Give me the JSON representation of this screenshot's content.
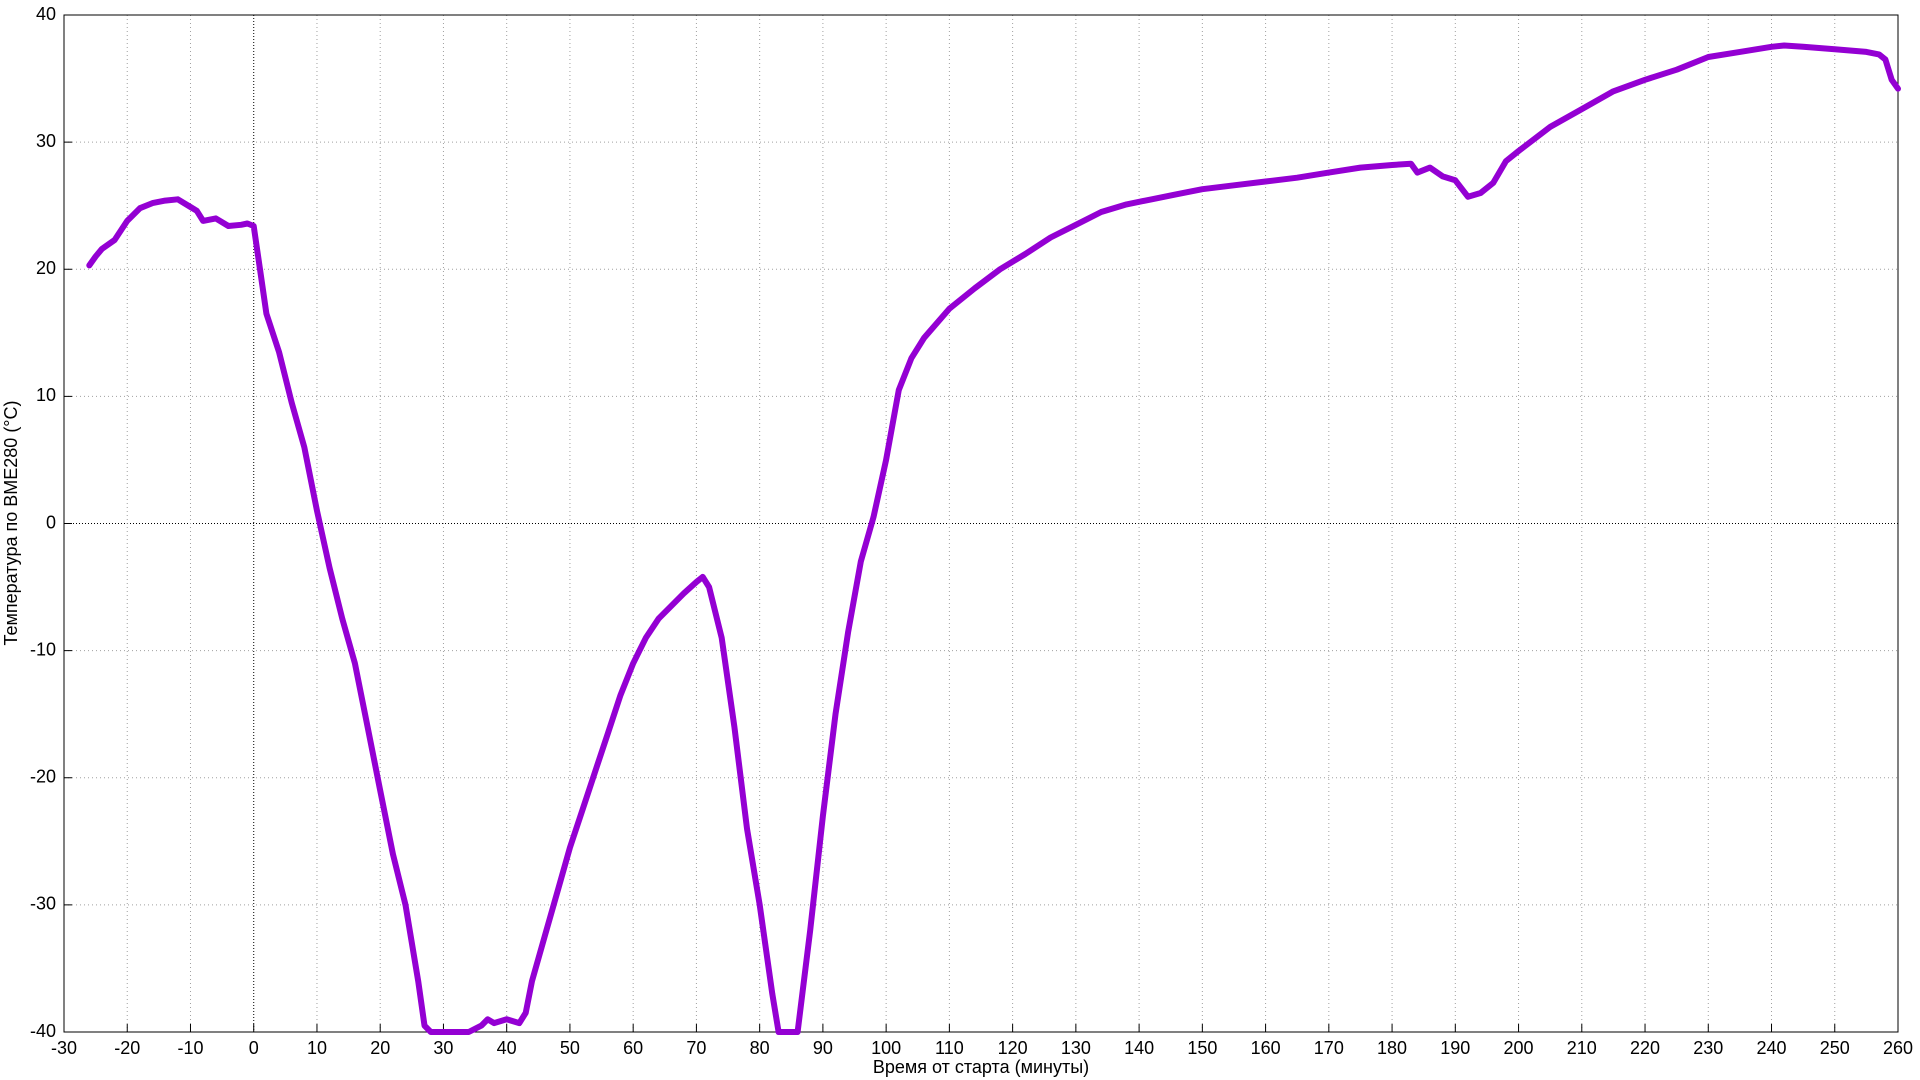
{
  "chart_data": {
    "type": "line",
    "x_label": "Время от старта (минуты)",
    "y_label": "Температура по BME280 (°C)",
    "color": "#9400d3",
    "grid": true,
    "x": [
      -26,
      -25,
      -24,
      -22,
      -20,
      -18,
      -16,
      -14,
      -12,
      -10,
      -9,
      -8,
      -6,
      -4,
      -2,
      -1,
      0,
      1,
      2,
      4,
      6,
      8,
      10,
      12,
      14,
      16,
      18,
      20,
      22,
      24,
      26,
      27,
      28,
      30,
      32,
      34,
      36,
      37,
      38,
      40,
      42,
      43,
      44,
      46,
      48,
      50,
      52,
      54,
      56,
      58,
      60,
      62,
      64,
      66,
      68,
      70,
      71,
      72,
      74,
      76,
      78,
      80,
      82,
      83,
      84,
      86,
      88,
      90,
      92,
      94,
      96,
      98,
      100,
      102,
      104,
      106,
      110,
      114,
      118,
      122,
      126,
      130,
      134,
      138,
      142,
      146,
      150,
      155,
      160,
      165,
      170,
      175,
      180,
      183,
      184,
      186,
      188,
      190,
      192,
      194,
      196,
      198,
      200,
      205,
      210,
      215,
      220,
      225,
      230,
      235,
      240,
      242,
      245,
      250,
      255,
      257,
      258,
      259,
      260
    ],
    "values": [
      20.3,
      21,
      21.6,
      22.3,
      23.8,
      24.8,
      25.2,
      25.4,
      25.5,
      24.9,
      24.6,
      23.8,
      24,
      23.4,
      23.5,
      23.6,
      23.4,
      20,
      16.5,
      13.5,
      9.5,
      6,
      1,
      -3.5,
      -7.5,
      -11,
      -16,
      -21,
      -26,
      -30,
      -36,
      -39.5,
      -40,
      -40,
      -40,
      -40,
      -39.5,
      -39,
      -39.3,
      -39,
      -39.3,
      -38.5,
      -36,
      -32.5,
      -29,
      -25.5,
      -22.5,
      -19.5,
      -16.5,
      -13.5,
      -11,
      -9,
      -7.5,
      -6.5,
      -5.5,
      -4.6,
      -4.2,
      -5,
      -9,
      -16,
      -24,
      -30,
      -37,
      -40,
      -40,
      -40,
      -32,
      -23,
      -15,
      -8.5,
      -3,
      0.5,
      5,
      10.5,
      13,
      14.6,
      16.9,
      18.5,
      20,
      21.2,
      22.5,
      23.5,
      24.5,
      25.1,
      25.5,
      25.9,
      26.3,
      26.6,
      26.9,
      27.2,
      27.6,
      28,
      28.2,
      28.3,
      27.6,
      28,
      27.3,
      27,
      25.7,
      26,
      26.8,
      28.5,
      29.3,
      31.2,
      32.6,
      34,
      34.9,
      35.7,
      36.7,
      37.1,
      37.5,
      37.6,
      37.5,
      37.3,
      37.1,
      36.9,
      36.5,
      34.9,
      34.2
    ],
    "xlim": [
      -30,
      260
    ],
    "ylim": [
      -40,
      40
    ],
    "xticks": [
      -30,
      -20,
      -10,
      0,
      10,
      20,
      30,
      40,
      50,
      60,
      70,
      80,
      90,
      100,
      110,
      120,
      130,
      140,
      150,
      160,
      170,
      180,
      190,
      200,
      210,
      220,
      230,
      240,
      250,
      260
    ],
    "yticks": [
      -40,
      -30,
      -20,
      -10,
      0,
      10,
      20,
      30,
      40
    ]
  }
}
